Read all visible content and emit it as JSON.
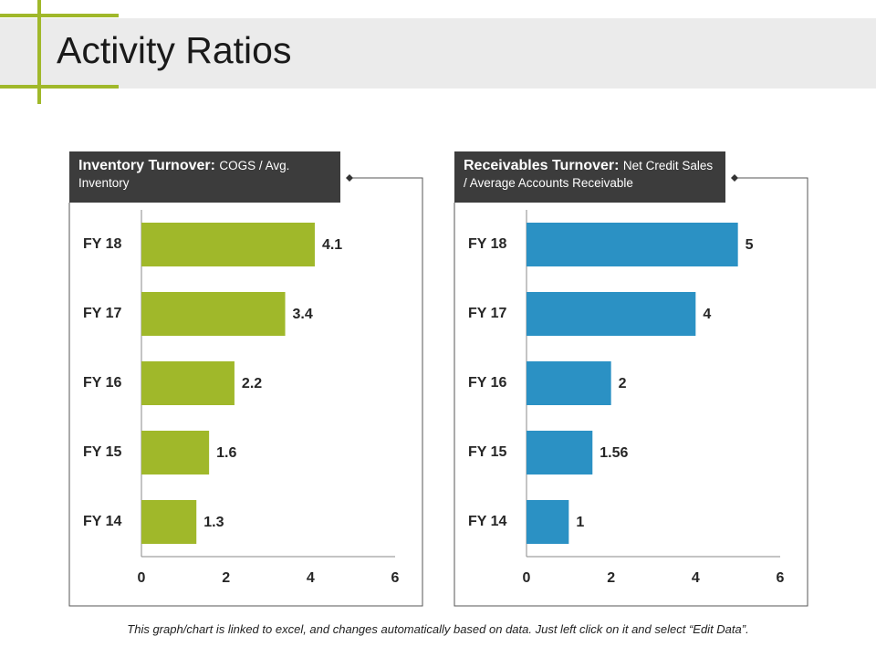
{
  "title": "Activity Ratios",
  "footer": "This graph/chart is linked to excel, and changes automatically based on data. Just left click on it and select “Edit Data”.",
  "chart_data": [
    {
      "type": "bar",
      "orientation": "horizontal",
      "title": "Inventory Turnover:",
      "subtitle": "COGS / Avg. Inventory",
      "categories": [
        "FY 18",
        "FY 17",
        "FY 16",
        "FY 15",
        "FY 14"
      ],
      "values": [
        4.1,
        3.4,
        2.2,
        1.6,
        1.3
      ],
      "color": "#a0b82a",
      "xlim": [
        0,
        6
      ],
      "xticks": [
        0,
        2,
        4,
        6
      ],
      "grid": false
    },
    {
      "type": "bar",
      "orientation": "horizontal",
      "title": "Receivables Turnover:",
      "subtitle": "Net Credit Sales / Average Accounts Receivable",
      "categories": [
        "FY 18",
        "FY 17",
        "FY 16",
        "FY 15",
        "FY 14"
      ],
      "values": [
        5,
        4,
        2,
        1.56,
        1
      ],
      "color": "#2b91c4",
      "xlim": [
        0,
        6
      ],
      "xticks": [
        0,
        2,
        4,
        6
      ],
      "grid": false
    }
  ]
}
